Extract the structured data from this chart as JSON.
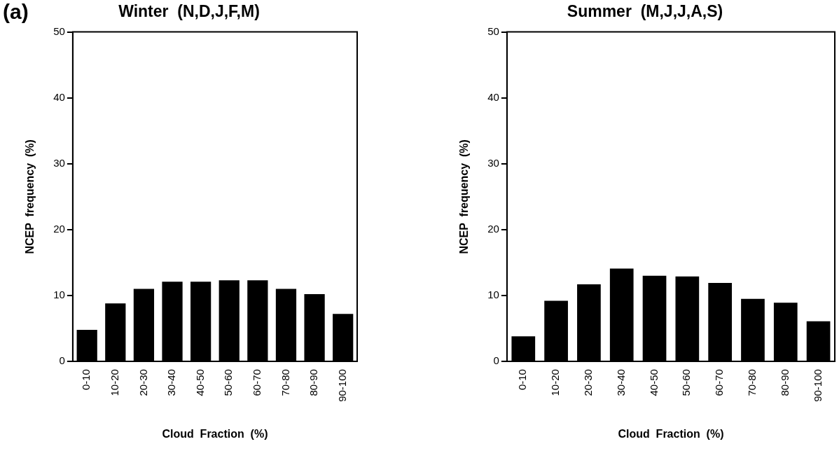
{
  "chart_data": [
    {
      "type": "bar",
      "title": "Winter  (N,D,J,F,M)",
      "xlabel": "Cloud  Fraction  (%)",
      "ylabel": "NCEP  frequency  (%)",
      "annotations": [
        "(a)"
      ],
      "categories": [
        "0-10",
        "10-20",
        "20-30",
        "30-40",
        "40-50",
        "50-60",
        "60-70",
        "70-80",
        "80-90",
        "90-100"
      ],
      "values": [
        4.8,
        8.8,
        11.0,
        12.1,
        12.1,
        12.3,
        12.3,
        11.0,
        10.2,
        7.2
      ],
      "color": "#000000",
      "ylim": [
        0,
        50
      ],
      "yticks": [
        0,
        10,
        20,
        30,
        40,
        50
      ]
    },
    {
      "type": "bar",
      "title": "Summer  (M,J,J,A,S)",
      "xlabel": "Cloud  Fraction  (%)",
      "ylabel": "NCEP  frequency  (%)",
      "categories": [
        "0-10",
        "10-20",
        "20-30",
        "30-40",
        "40-50",
        "50-60",
        "60-70",
        "70-80",
        "80-90",
        "90-100"
      ],
      "values": [
        3.8,
        9.2,
        11.7,
        14.1,
        13.0,
        12.9,
        11.9,
        9.5,
        8.9,
        6.1
      ],
      "color": "#000000",
      "ylim": [
        0,
        50
      ],
      "yticks": [
        0,
        10,
        20,
        30,
        40,
        50
      ]
    }
  ]
}
